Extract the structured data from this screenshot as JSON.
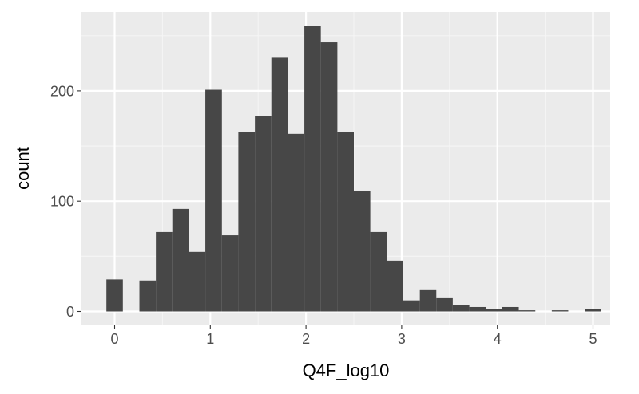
{
  "chart_data": {
    "type": "bar",
    "subtype": "histogram",
    "xlabel": "Q4F_log10",
    "ylabel": "count",
    "xlim": [
      -0.35,
      5.25
    ],
    "ylim": [
      -8,
      272
    ],
    "x_ticks": [
      0,
      1,
      2,
      3,
      4,
      5
    ],
    "x_tick_labels": [
      "0",
      "1",
      "2",
      "3",
      "4",
      "5"
    ],
    "y_ticks": [
      0,
      100,
      200
    ],
    "y_tick_labels": [
      "0",
      "100",
      "200"
    ],
    "bin_width": 0.1724,
    "bins": [
      {
        "x0": -0.086,
        "x1": 0.086,
        "count": 29
      },
      {
        "x0": 0.086,
        "x1": 0.259,
        "count": 0
      },
      {
        "x0": 0.259,
        "x1": 0.431,
        "count": 28
      },
      {
        "x0": 0.431,
        "x1": 0.603,
        "count": 72
      },
      {
        "x0": 0.603,
        "x1": 0.776,
        "count": 93
      },
      {
        "x0": 0.776,
        "x1": 0.948,
        "count": 54
      },
      {
        "x0": 0.948,
        "x1": 1.121,
        "count": 201
      },
      {
        "x0": 1.121,
        "x1": 1.293,
        "count": 69
      },
      {
        "x0": 1.293,
        "x1": 1.466,
        "count": 163
      },
      {
        "x0": 1.466,
        "x1": 1.638,
        "count": 177
      },
      {
        "x0": 1.638,
        "x1": 1.81,
        "count": 230
      },
      {
        "x0": 1.81,
        "x1": 1.983,
        "count": 161
      },
      {
        "x0": 1.983,
        "x1": 2.155,
        "count": 259
      },
      {
        "x0": 2.155,
        "x1": 2.328,
        "count": 244
      },
      {
        "x0": 2.328,
        "x1": 2.5,
        "count": 163
      },
      {
        "x0": 2.5,
        "x1": 2.672,
        "count": 109
      },
      {
        "x0": 2.672,
        "x1": 2.845,
        "count": 72
      },
      {
        "x0": 2.845,
        "x1": 3.017,
        "count": 46
      },
      {
        "x0": 3.017,
        "x1": 3.19,
        "count": 10
      },
      {
        "x0": 3.19,
        "x1": 3.362,
        "count": 20
      },
      {
        "x0": 3.362,
        "x1": 3.534,
        "count": 12
      },
      {
        "x0": 3.534,
        "x1": 3.707,
        "count": 6
      },
      {
        "x0": 3.707,
        "x1": 3.879,
        "count": 4
      },
      {
        "x0": 3.879,
        "x1": 4.052,
        "count": 2
      },
      {
        "x0": 4.052,
        "x1": 4.224,
        "count": 4
      },
      {
        "x0": 4.224,
        "x1": 4.397,
        "count": 1
      },
      {
        "x0": 4.397,
        "x1": 4.569,
        "count": 0
      },
      {
        "x0": 4.569,
        "x1": 4.741,
        "count": 1
      },
      {
        "x0": 4.741,
        "x1": 4.914,
        "count": 0
      },
      {
        "x0": 4.914,
        "x1": 5.086,
        "count": 2
      }
    ],
    "grid": true,
    "colors": {
      "bar": "#474747",
      "panel_background": "#ebebeb",
      "grid_major": "#ffffff",
      "grid_minor": "#f5f5f5",
      "tick_label": "#4d4d4d"
    }
  }
}
